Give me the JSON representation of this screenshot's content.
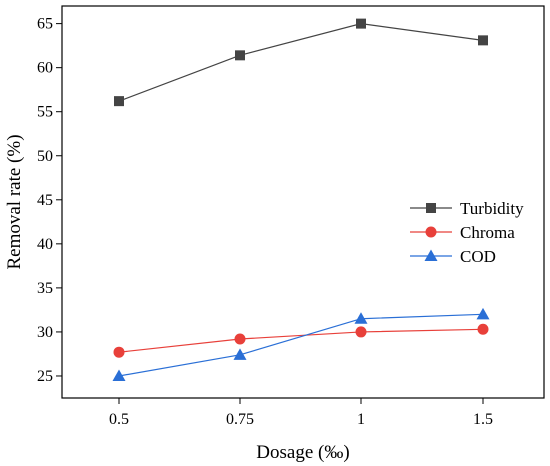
{
  "chart_data": {
    "type": "line",
    "xlabel": "Dosage (‰)",
    "ylabel": "Removal rate (%)",
    "categories": [
      "0.5",
      "0.75",
      "1",
      "1.5"
    ],
    "ylim": [
      22.5,
      67
    ],
    "yticks": [
      25,
      30,
      35,
      40,
      45,
      50,
      55,
      60,
      65
    ],
    "grid": false,
    "legend": "right-center",
    "series": [
      {
        "name": "Turbidity",
        "values": [
          56.2,
          61.4,
          65.0,
          63.1
        ],
        "color": "#444444",
        "marker": "square"
      },
      {
        "name": "Chroma",
        "values": [
          27.7,
          29.2,
          30.0,
          30.3
        ],
        "color": "#e8403a",
        "marker": "circle"
      },
      {
        "name": "COD",
        "values": [
          25.0,
          27.4,
          31.5,
          32.0
        ],
        "color": "#2a6fd6",
        "marker": "triangle"
      }
    ]
  }
}
